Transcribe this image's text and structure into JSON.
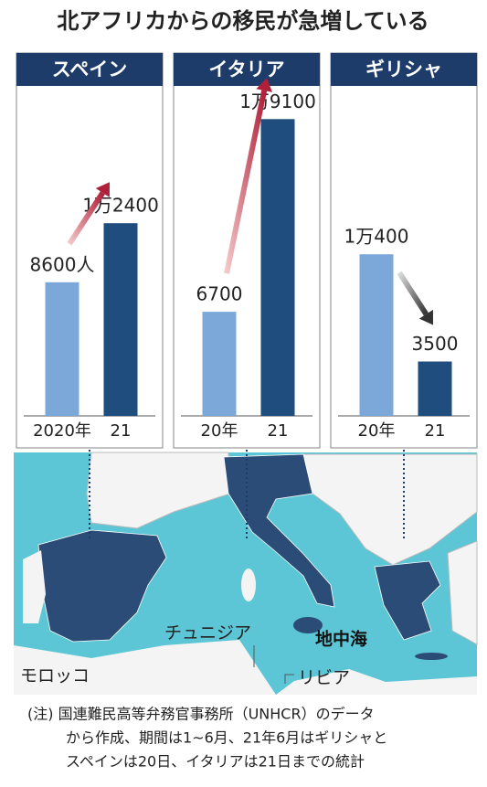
{
  "title": "北アフリカからの移民が急増している",
  "chart_data": [
    {
      "type": "bar",
      "title": "スペイン",
      "categories": [
        "2020年",
        "21"
      ],
      "values": [
        8600,
        12400
      ],
      "value_labels": [
        "8600人",
        "1万2400"
      ],
      "colors": [
        "#7ba8d9",
        "#1f4d7e"
      ],
      "ylim": [
        0,
        20000
      ]
    },
    {
      "type": "bar",
      "title": "イタリア",
      "categories": [
        "20年",
        "21"
      ],
      "values": [
        6700,
        19100
      ],
      "value_labels": [
        "6700",
        "1万9100"
      ],
      "colors": [
        "#7ba8d9",
        "#1f4d7e"
      ],
      "ylim": [
        0,
        20000
      ]
    },
    {
      "type": "bar",
      "title": "ギリシャ",
      "categories": [
        "20年",
        "21"
      ],
      "values": [
        10400,
        3500
      ],
      "value_labels": [
        "1万400",
        "3500"
      ],
      "colors": [
        "#7ba8d9",
        "#1f4d7e"
      ],
      "ylim": [
        0,
        20000
      ]
    }
  ],
  "map_labels": [
    "モロッコ",
    "チュニジア",
    "地中海",
    "リビア"
  ],
  "note": [
    "(注) 国連難民高等弁務官事務所（UNHCR）のデータ",
    "から作成、期間は1~6月、21年6月はギリシャと",
    "スペインは20日、イタリアは21日までの統計"
  ]
}
